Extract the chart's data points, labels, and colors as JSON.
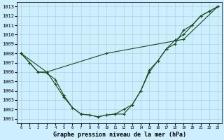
{
  "xlabel": "Graphe pression niveau de la mer (hPa)",
  "xlim": [
    -0.5,
    23.5
  ],
  "ylim": [
    1000.5,
    1013.5
  ],
  "yticks": [
    1001,
    1002,
    1003,
    1004,
    1005,
    1006,
    1007,
    1008,
    1009,
    1010,
    1011,
    1012,
    1013
  ],
  "xticks": [
    0,
    1,
    2,
    3,
    4,
    5,
    6,
    7,
    8,
    9,
    10,
    11,
    12,
    13,
    14,
    15,
    16,
    17,
    18,
    19,
    20,
    21,
    22,
    23
  ],
  "background_color": "#cceeff",
  "grid_color": "#aacccc",
  "line_color": "#1a4a1a",
  "series1_x": [
    0,
    1,
    2,
    3,
    4,
    5,
    6,
    7,
    8,
    9,
    10,
    11,
    12,
    13,
    14,
    15,
    16,
    17,
    18,
    19,
    20,
    21,
    22,
    23
  ],
  "series1_y": [
    1008.0,
    1007.0,
    1006.0,
    1006.0,
    1004.7,
    1003.3,
    1002.2,
    1001.5,
    1001.4,
    1001.2,
    1001.4,
    1001.5,
    1001.5,
    1002.5,
    1004.0,
    1006.2,
    1007.2,
    1008.5,
    1009.0,
    1010.5,
    1011.0,
    1012.0,
    1012.5,
    1013.0
  ],
  "series2_x": [
    0,
    1,
    2,
    3,
    4,
    5,
    6,
    7,
    8,
    9,
    10,
    11,
    12,
    13,
    14,
    15,
    16,
    17,
    18,
    19,
    20,
    21,
    22,
    23
  ],
  "series2_y": [
    1008.0,
    1007.0,
    1006.0,
    1005.9,
    1005.2,
    1003.5,
    1002.2,
    1001.5,
    1001.4,
    1001.2,
    1001.4,
    1001.5,
    1002.0,
    1002.5,
    1004.0,
    1006.0,
    1007.2,
    1008.5,
    1009.4,
    1010.0,
    1011.0,
    1012.0,
    1012.5,
    1013.0
  ],
  "series3_x": [
    0,
    3,
    10,
    19,
    23
  ],
  "series3_y": [
    1008.0,
    1006.0,
    1008.0,
    1009.5,
    1013.0
  ]
}
